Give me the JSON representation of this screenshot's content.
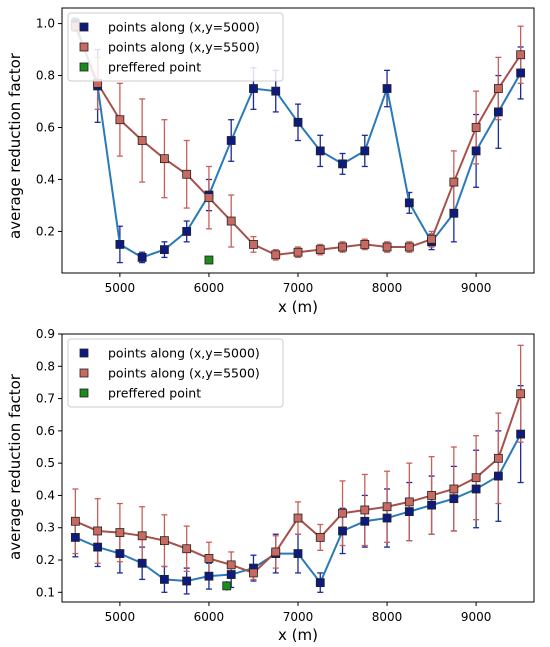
{
  "chart_data": [
    {
      "type": "line",
      "xlabel": "x (m)",
      "ylabel": "average reduction factor",
      "xlim": [
        4350,
        9650
      ],
      "ylim": [
        0.04,
        1.06
      ],
      "xticks": [
        5000,
        6000,
        7000,
        8000,
        9000
      ],
      "yticks": [
        0.2,
        0.4,
        0.6,
        0.8,
        1.0
      ],
      "xtick_labels": [
        "5000",
        "6000",
        "7000",
        "8000",
        "9000"
      ],
      "ytick_labels": [
        "0.2",
        "0.4",
        "0.6",
        "0.8",
        "1.0"
      ],
      "legend_position": "top-left",
      "grid": false,
      "x": [
        4500,
        4750,
        5000,
        5250,
        5500,
        5750,
        6000,
        6250,
        6500,
        6750,
        7000,
        7250,
        7500,
        7750,
        8000,
        8250,
        8500,
        8750,
        9000,
        9250,
        9500
      ],
      "series": [
        {
          "name": "points along (x,y=5000)",
          "line_color": "#2a7ab9",
          "marker_color": "#0d1a80",
          "err_color": "#1a2a9a",
          "values": [
            1.0,
            0.76,
            0.15,
            0.1,
            0.13,
            0.2,
            0.34,
            0.55,
            0.75,
            0.74,
            0.62,
            0.51,
            0.46,
            0.51,
            0.75,
            0.31,
            0.16,
            0.27,
            0.51,
            0.66,
            0.81
          ],
          "errors": [
            0.02,
            0.14,
            0.07,
            0.02,
            0.03,
            0.04,
            0.06,
            0.08,
            0.08,
            0.08,
            0.07,
            0.06,
            0.04,
            0.06,
            0.07,
            0.04,
            0.03,
            0.11,
            0.14,
            0.14,
            0.1
          ]
        },
        {
          "name": "points along (x,y=5500)",
          "line_color": "#a8504a",
          "marker_color": "#c86a62",
          "err_color": "#c8605a",
          "values": [
            0.99,
            0.77,
            0.63,
            0.55,
            0.48,
            0.42,
            0.33,
            0.24,
            0.15,
            0.11,
            0.12,
            0.13,
            0.14,
            0.15,
            0.14,
            0.14,
            0.17,
            0.39,
            0.6,
            0.75,
            0.88
          ],
          "errors": [
            0.02,
            0.1,
            0.14,
            0.16,
            0.15,
            0.13,
            0.12,
            0.1,
            0.03,
            0.02,
            0.02,
            0.02,
            0.02,
            0.02,
            0.02,
            0.02,
            0.03,
            0.12,
            0.14,
            0.12,
            0.11
          ]
        }
      ],
      "preferred_point": {
        "name": "preffered point",
        "x": 6000,
        "y": 0.09,
        "error": 0.015,
        "marker_color": "#1c8a1c"
      }
    },
    {
      "type": "line",
      "xlabel": "x (m)",
      "ylabel": "average reduction factor",
      "xlim": [
        4350,
        9650
      ],
      "ylim": [
        0.07,
        0.9
      ],
      "xticks": [
        5000,
        6000,
        7000,
        8000,
        9000
      ],
      "yticks": [
        0.1,
        0.2,
        0.3,
        0.4,
        0.5,
        0.6,
        0.7,
        0.8,
        0.9
      ],
      "xtick_labels": [
        "5000",
        "6000",
        "7000",
        "8000",
        "9000"
      ],
      "ytick_labels": [
        "0.1",
        "0.2",
        "0.3",
        "0.4",
        "0.5",
        "0.6",
        "0.7",
        "0.8",
        "0.9"
      ],
      "legend_position": "top-left",
      "grid": false,
      "x": [
        4500,
        4750,
        5000,
        5250,
        5500,
        5750,
        6000,
        6250,
        6500,
        6750,
        7000,
        7250,
        7500,
        7750,
        8000,
        8250,
        8500,
        8750,
        9000,
        9250,
        9500
      ],
      "series": [
        {
          "name": "points along (x,y=5000)",
          "line_color": "#2a7ab9",
          "marker_color": "#0d1a80",
          "err_color": "#1a2a9a",
          "values": [
            0.27,
            0.24,
            0.22,
            0.19,
            0.14,
            0.135,
            0.15,
            0.155,
            0.175,
            0.22,
            0.22,
            0.13,
            0.29,
            0.32,
            0.33,
            0.35,
            0.37,
            0.39,
            0.42,
            0.46,
            0.59
          ],
          "errors": [
            0.06,
            0.06,
            0.06,
            0.05,
            0.04,
            0.04,
            0.04,
            0.04,
            0.04,
            0.06,
            0.06,
            0.03,
            0.07,
            0.08,
            0.09,
            0.09,
            0.09,
            0.1,
            0.12,
            0.14,
            0.15
          ]
        },
        {
          "name": "points along (x,y=5500)",
          "line_color": "#a8504a",
          "marker_color": "#c86a62",
          "err_color": "#c8605a",
          "values": [
            0.32,
            0.29,
            0.285,
            0.275,
            0.26,
            0.235,
            0.205,
            0.185,
            0.16,
            0.225,
            0.33,
            0.27,
            0.345,
            0.355,
            0.365,
            0.38,
            0.4,
            0.42,
            0.455,
            0.515,
            0.715
          ],
          "errors": [
            0.1,
            0.1,
            0.09,
            0.09,
            0.08,
            0.07,
            0.05,
            0.04,
            0.02,
            0.05,
            0.05,
            0.04,
            0.1,
            0.11,
            0.11,
            0.12,
            0.12,
            0.13,
            0.13,
            0.14,
            0.15
          ]
        }
      ],
      "preferred_point": {
        "name": "preffered point",
        "x": 6200,
        "y": 0.12,
        "error": 0.015,
        "marker_color": "#1c8a1c"
      }
    }
  ]
}
